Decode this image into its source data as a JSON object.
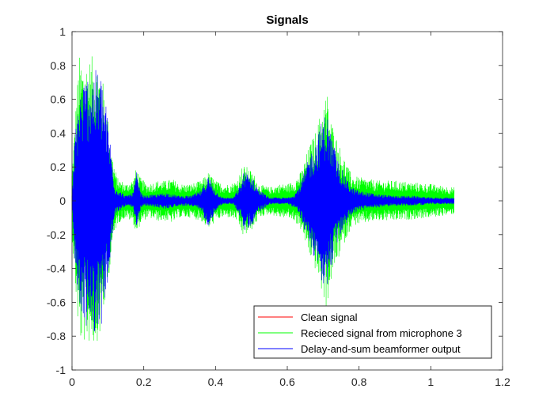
{
  "chart_data": {
    "type": "line",
    "title": "Signals",
    "xlabel": "",
    "ylabel": "",
    "xlim": [
      0,
      1.2
    ],
    "ylim": [
      -1,
      1
    ],
    "x_ticks": [
      "0",
      "0.2",
      "0.4",
      "0.6",
      "0.8",
      "1",
      "1.2"
    ],
    "y_ticks": [
      "1",
      "0.8",
      "0.6",
      "0.4",
      "0.2",
      "0",
      "-0.2",
      "-0.4",
      "-0.6",
      "-0.8",
      "-1"
    ],
    "grid": false,
    "box": true,
    "legend_position": "bottom-right",
    "x_end": 1.065,
    "series": [
      {
        "name": "Clean signal",
        "color": "#ff0000",
        "envelope": [
          [
            0,
            0.0
          ],
          [
            1.065,
            0.0
          ]
        ]
      },
      {
        "name": "Recieced signal from microphone 3",
        "color": "#00ff00",
        "envelope": [
          [
            0.0,
            0.18
          ],
          [
            0.01,
            0.55
          ],
          [
            0.02,
            0.86
          ],
          [
            0.04,
            0.84
          ],
          [
            0.06,
            0.86
          ],
          [
            0.08,
            0.8
          ],
          [
            0.1,
            0.5
          ],
          [
            0.11,
            0.3
          ],
          [
            0.125,
            0.14
          ],
          [
            0.15,
            0.1
          ],
          [
            0.17,
            0.13
          ],
          [
            0.18,
            0.2
          ],
          [
            0.19,
            0.14
          ],
          [
            0.21,
            0.1
          ],
          [
            0.24,
            0.12
          ],
          [
            0.26,
            0.12
          ],
          [
            0.28,
            0.13
          ],
          [
            0.3,
            0.1
          ],
          [
            0.33,
            0.1
          ],
          [
            0.36,
            0.12
          ],
          [
            0.38,
            0.17
          ],
          [
            0.4,
            0.12
          ],
          [
            0.42,
            0.1
          ],
          [
            0.44,
            0.1
          ],
          [
            0.46,
            0.12
          ],
          [
            0.475,
            0.21
          ],
          [
            0.49,
            0.2
          ],
          [
            0.51,
            0.15
          ],
          [
            0.52,
            0.1
          ],
          [
            0.55,
            0.08
          ],
          [
            0.58,
            0.1
          ],
          [
            0.6,
            0.1
          ],
          [
            0.62,
            0.12
          ],
          [
            0.64,
            0.18
          ],
          [
            0.66,
            0.32
          ],
          [
            0.68,
            0.42
          ],
          [
            0.7,
            0.58
          ],
          [
            0.71,
            0.66
          ],
          [
            0.72,
            0.5
          ],
          [
            0.74,
            0.36
          ],
          [
            0.76,
            0.25
          ],
          [
            0.78,
            0.15
          ],
          [
            0.8,
            0.14
          ],
          [
            0.85,
            0.12
          ],
          [
            0.9,
            0.12
          ],
          [
            0.95,
            0.11
          ],
          [
            1.0,
            0.1
          ],
          [
            1.065,
            0.08
          ]
        ]
      },
      {
        "name": "Delay-and-sum beamformer output",
        "color": "#0000ff",
        "envelope": [
          [
            0.0,
            0.05
          ],
          [
            0.01,
            0.45
          ],
          [
            0.02,
            0.65
          ],
          [
            0.04,
            0.75
          ],
          [
            0.06,
            0.78
          ],
          [
            0.08,
            0.76
          ],
          [
            0.1,
            0.5
          ],
          [
            0.11,
            0.28
          ],
          [
            0.12,
            0.08
          ],
          [
            0.15,
            0.03
          ],
          [
            0.17,
            0.05
          ],
          [
            0.18,
            0.17
          ],
          [
            0.19,
            0.06
          ],
          [
            0.2,
            0.03
          ],
          [
            0.24,
            0.04
          ],
          [
            0.26,
            0.05
          ],
          [
            0.3,
            0.03
          ],
          [
            0.33,
            0.03
          ],
          [
            0.36,
            0.06
          ],
          [
            0.38,
            0.15
          ],
          [
            0.4,
            0.06
          ],
          [
            0.42,
            0.02
          ],
          [
            0.45,
            0.02
          ],
          [
            0.47,
            0.1
          ],
          [
            0.48,
            0.18
          ],
          [
            0.5,
            0.15
          ],
          [
            0.52,
            0.07
          ],
          [
            0.55,
            0.02
          ],
          [
            0.6,
            0.02
          ],
          [
            0.62,
            0.04
          ],
          [
            0.64,
            0.12
          ],
          [
            0.66,
            0.26
          ],
          [
            0.68,
            0.36
          ],
          [
            0.7,
            0.5
          ],
          [
            0.71,
            0.53
          ],
          [
            0.72,
            0.42
          ],
          [
            0.74,
            0.25
          ],
          [
            0.76,
            0.15
          ],
          [
            0.78,
            0.08
          ],
          [
            0.8,
            0.06
          ],
          [
            0.85,
            0.04
          ],
          [
            0.9,
            0.03
          ],
          [
            0.95,
            0.03
          ],
          [
            1.0,
            0.02
          ],
          [
            1.065,
            0.02
          ]
        ]
      }
    ]
  }
}
